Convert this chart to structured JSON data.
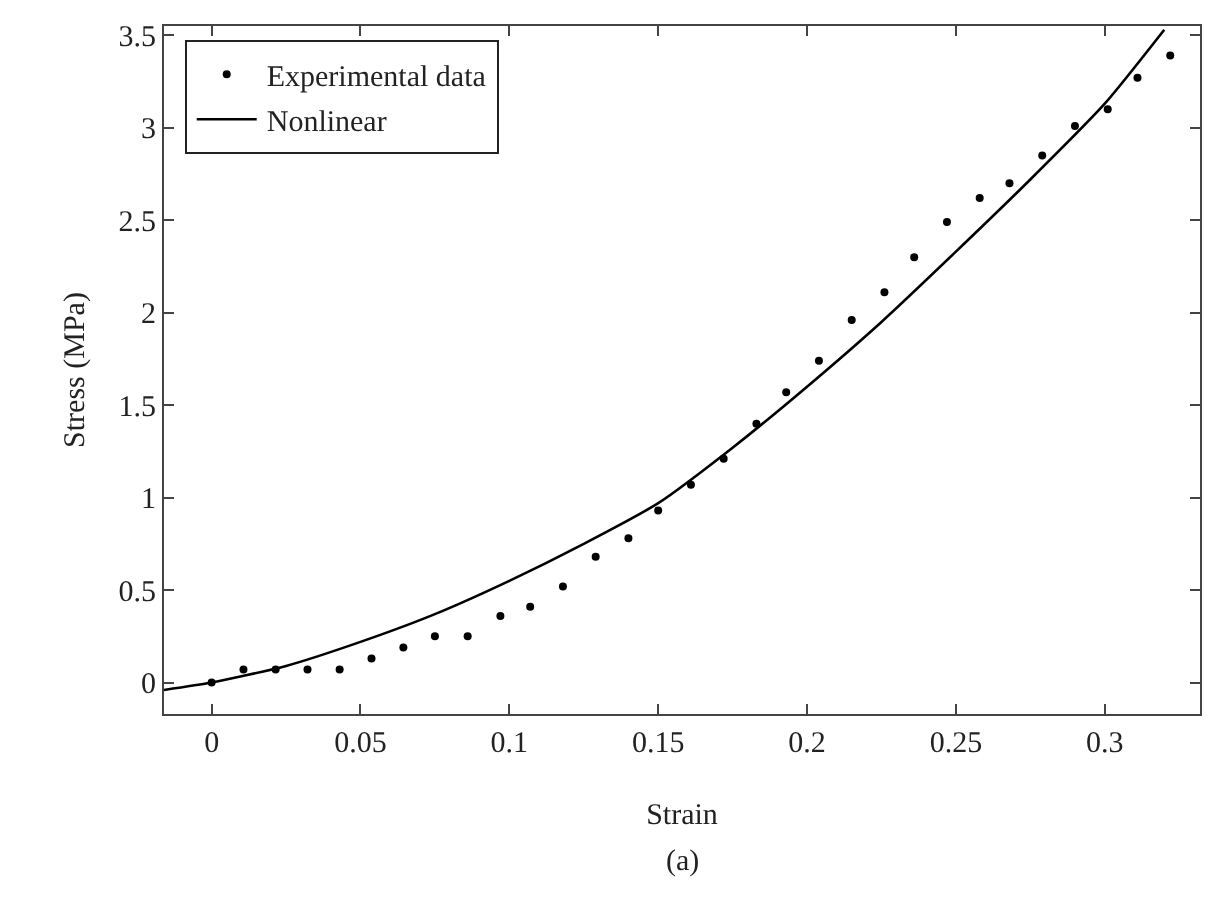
{
  "chart_data": {
    "type": "scatter",
    "xlabel": "Strain",
    "ylabel": "Stress (MPa)",
    "annotations": [
      "(a)"
    ],
    "xlim": [
      -0.016,
      0.332
    ],
    "xticks": [
      0,
      0.05,
      0.1,
      0.15,
      0.2,
      0.25,
      0.3
    ],
    "ylim": [
      -0.17,
      3.55
    ],
    "yticks": [
      0,
      0.5,
      1,
      1.5,
      2,
      2.5,
      3,
      3.5
    ],
    "grid": false,
    "legend": "top left",
    "series": [
      {
        "name": "Experimental data",
        "marker": "circle",
        "color": "#000000",
        "x": [
          0,
          0.0107,
          0.0215,
          0.0322,
          0.043,
          0.0537,
          0.0644,
          0.075,
          0.086,
          0.097,
          0.107,
          0.118,
          0.129,
          0.14,
          0.15,
          0.161,
          0.172,
          0.183,
          0.193,
          0.204,
          0.215,
          0.226,
          0.236,
          0.247,
          0.258,
          0.268,
          0.279,
          0.29,
          0.301,
          0.311,
          0.322
        ],
        "values": [
          0,
          0.07,
          0.07,
          0.07,
          0.07,
          0.13,
          0.19,
          0.25,
          0.25,
          0.36,
          0.41,
          0.52,
          0.68,
          0.78,
          0.93,
          1.07,
          1.21,
          1.4,
          1.57,
          1.74,
          1.96,
          2.11,
          2.3,
          2.49,
          2.62,
          2.7,
          2.85,
          3.01,
          3.1,
          3.27,
          3.39
        ]
      },
      {
        "name": "Nonlinear",
        "type": "line",
        "color": "#000000",
        "line_style": "solid",
        "x": [
          -0.016,
          0,
          0.025,
          0.05,
          0.075,
          0.1,
          0.125,
          0.15,
          0.175,
          0.2,
          0.225,
          0.25,
          0.275,
          0.3,
          0.32
        ],
        "values": [
          -0.04,
          0,
          0.09,
          0.22,
          0.37,
          0.55,
          0.75,
          0.97,
          1.27,
          1.6,
          1.95,
          2.33,
          2.72,
          3.13,
          3.53
        ]
      }
    ]
  }
}
